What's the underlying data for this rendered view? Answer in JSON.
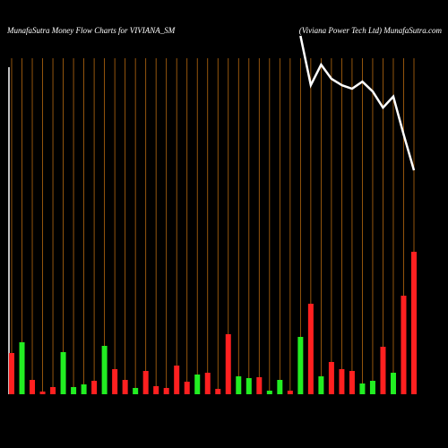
{
  "chart_data": {
    "type": "bar",
    "title": "MunafaSutra  Money Flow  Charts for VIVIANA_SM",
    "subtitle": "(Viviana  Power Tech Ltd) MunafaSutra.com",
    "values": [
      46,
      58,
      16,
      3,
      8,
      47,
      8,
      11,
      15,
      54,
      28,
      16,
      7,
      26,
      9,
      7,
      32,
      14,
      22,
      24,
      6,
      67,
      20,
      18,
      19,
      4,
      16,
      4,
      64,
      101,
      20,
      36,
      28,
      26,
      12,
      15,
      53,
      24,
      110,
      159
    ],
    "colors": [
      "#ff2020",
      "#22ee22",
      "#ff2020",
      "#ff2020",
      "#ff2020",
      "#22ee22",
      "#22ee22",
      "#22ee22",
      "#ff2020",
      "#22ee22",
      "#ff2020",
      "#ff2020",
      "#22ee22",
      "#ff2020",
      "#ff2020",
      "#ff2020",
      "#ff2020",
      "#ff2020",
      "#22ee22",
      "#ff2020",
      "#ff2020",
      "#ff2020",
      "#22ee22",
      "#22ee22",
      "#ff2020",
      "#22ee22",
      "#22ee22",
      "#ff2020",
      "#22ee22",
      "#ff2020",
      "#22ee22",
      "#ff2020",
      "#ff2020",
      "#ff2020",
      "#22ee22",
      "#22ee22",
      "#ff2020",
      "#22ee22",
      "#ff2020",
      "#ff2020"
    ],
    "ylim": [
      0,
      440
    ],
    "line": {
      "color": "#ffffff",
      "axis": "y2",
      "values": [
        null,
        null,
        null,
        null,
        null,
        null,
        null,
        null,
        null,
        null,
        null,
        null,
        null,
        null,
        null,
        null,
        null,
        null,
        null,
        null,
        null,
        null,
        null,
        null,
        null,
        null,
        null,
        null,
        90.9,
        78.4,
        83.6,
        80,
        78.4,
        77.5,
        79.3,
        76.8,
        72.7,
        75.5,
        65.9,
        56.8
      ]
    },
    "y2lim": [
      0,
      100
    ],
    "grid": true,
    "grid_color": "#b86a10"
  }
}
